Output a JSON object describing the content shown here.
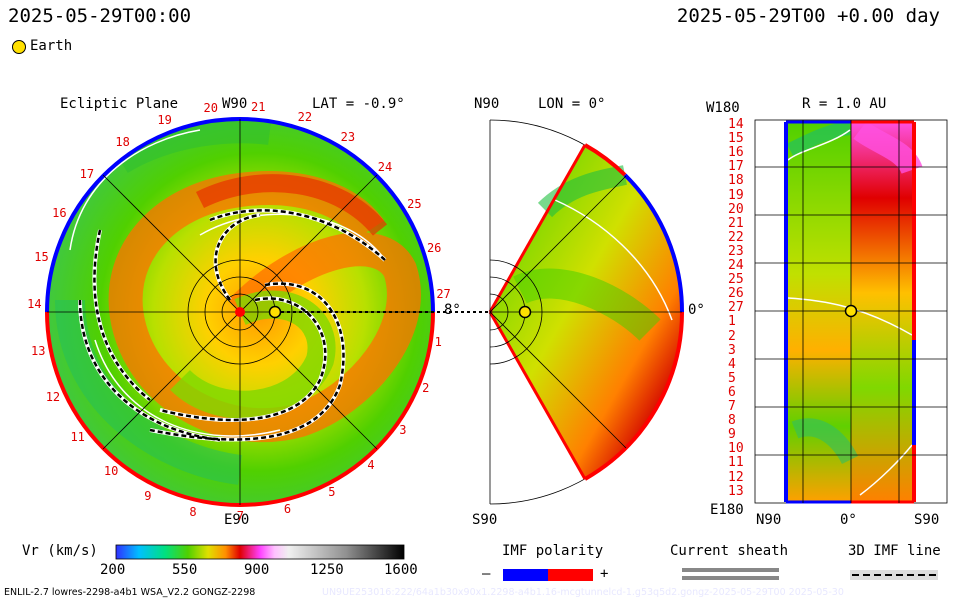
{
  "header": {
    "time_left": "2025-05-29T00:00",
    "time_right": "2025-05-29T00 +0.00 day",
    "earth_legend": "Earth"
  },
  "ecliptic": {
    "title": "Ecliptic Plane",
    "top": "W90",
    "lat": "LAT = -0.9°",
    "bottom": "E90",
    "deg_right": "8°",
    "rotations": [
      "20",
      "21",
      "22",
      "23",
      "24",
      "25",
      "26",
      "27",
      "1",
      "2",
      "3",
      "4",
      "5",
      "6",
      "7",
      "8",
      "9",
      "10",
      "11",
      "12",
      "13",
      "14",
      "15",
      "16",
      "17",
      "18",
      "19"
    ]
  },
  "meridional": {
    "top": "N90",
    "lon": "LON = 0°",
    "bottom": "S90",
    "right": "0°"
  },
  "radial": {
    "top_left": "W180",
    "r": "R = 1.0 AU",
    "bottom_left": "E180",
    "x_left": "N90",
    "x_mid": "0°",
    "x_right": "S90",
    "rows": [
      "14",
      "15",
      "16",
      "17",
      "18",
      "19",
      "20",
      "21",
      "22",
      "23",
      "24",
      "25",
      "26",
      "27",
      "1",
      "2",
      "3",
      "4",
      "5",
      "6",
      "7",
      "8",
      "9",
      "10",
      "11",
      "12",
      "13"
    ]
  },
  "colorbar": {
    "label": "Vr (km/s)",
    "ticks": [
      "200",
      "550",
      "900",
      "1250",
      "1600"
    ],
    "colors": [
      "#2020ff",
      "#00c0ff",
      "#00e080",
      "#40d000",
      "#c0e000",
      "#ffe000",
      "#ff9000",
      "#ff2000",
      "#c00000",
      "#ff40ff",
      "#ff90ff",
      "#e0e0e0",
      "#a0a0a0",
      "#606060",
      "#000000"
    ]
  },
  "imf": {
    "title": "IMF polarity",
    "minus": "–",
    "plus": "+",
    "neg_color": "#0000ff",
    "pos_color": "#ff0000"
  },
  "sheath": {
    "title": "Current sheath"
  },
  "imfline": {
    "title": "3D IMF line"
  },
  "footer": {
    "left": "ENLIL-2.7 lowres-2298-a4b1 WSA_V2.2 GONGZ-2298",
    "right": "UN9UE253016:222/64a1b30x90x1.2298-a4b1.16-mcgtunnelcd-1.g53q5d2.gongz-2025-05-29T00  2025-05-30"
  }
}
